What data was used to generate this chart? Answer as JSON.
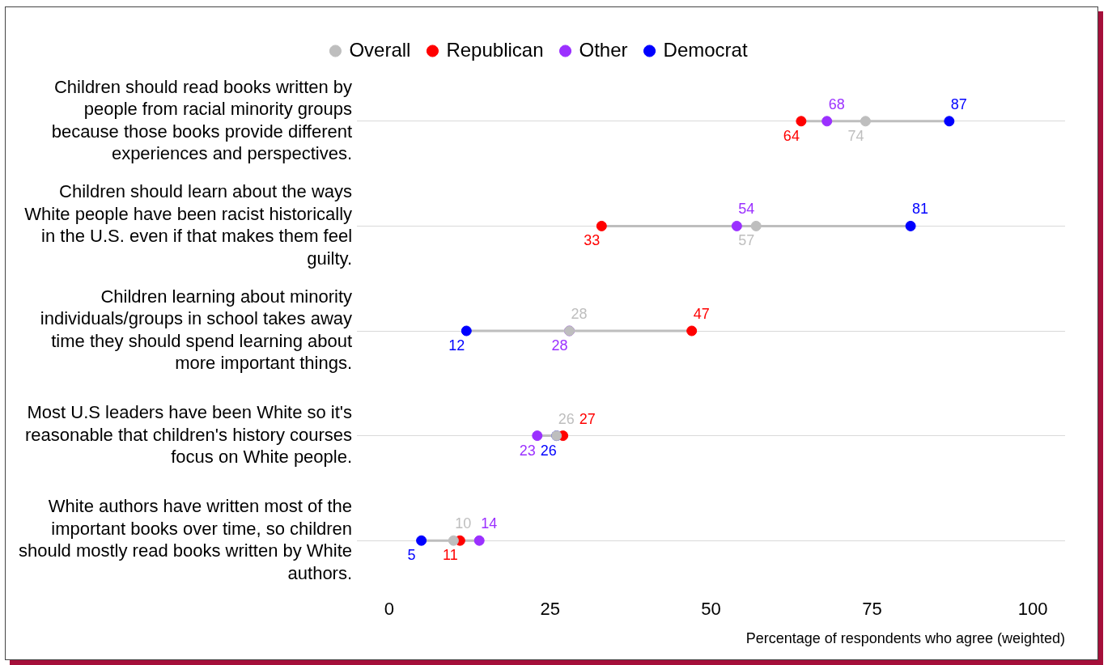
{
  "chart_data": {
    "type": "scatter",
    "xlabel": "Percentage of respondents who agree (weighted)",
    "categories": [
      "Children should read books written by people from racial minority groups because those books provide different experiences and perspectives.",
      "Children should learn about the ways White people have been racist historically in the U.S. even if that makes them feel guilty.",
      "Children learning about minority individuals/groups in school takes away time they should spend learning about more important things.",
      "Most U.S leaders have been White so it's reasonable that children's history courses focus on White people.",
      "White authors have written most of the important books over time, so children should mostly read books written by White authors."
    ],
    "series": [
      {
        "name": "Overall",
        "color": "#bebebe",
        "values": [
          74,
          57,
          28,
          26,
          10
        ]
      },
      {
        "name": "Republican",
        "color": "#ff0000",
        "values": [
          64,
          33,
          47,
          27,
          11
        ]
      },
      {
        "name": "Other",
        "color": "#9b30ff",
        "values": [
          68,
          54,
          28,
          23,
          14
        ]
      },
      {
        "name": "Democrat",
        "color": "#0000ff",
        "values": [
          87,
          81,
          12,
          26,
          5
        ]
      }
    ],
    "orientation": "horizontal",
    "xlim": [
      -5,
      105
    ],
    "xticks": [
      0,
      25,
      50,
      75,
      100
    ],
    "grid": "y",
    "legend": "top",
    "marker": "circle",
    "data_labels": true
  }
}
